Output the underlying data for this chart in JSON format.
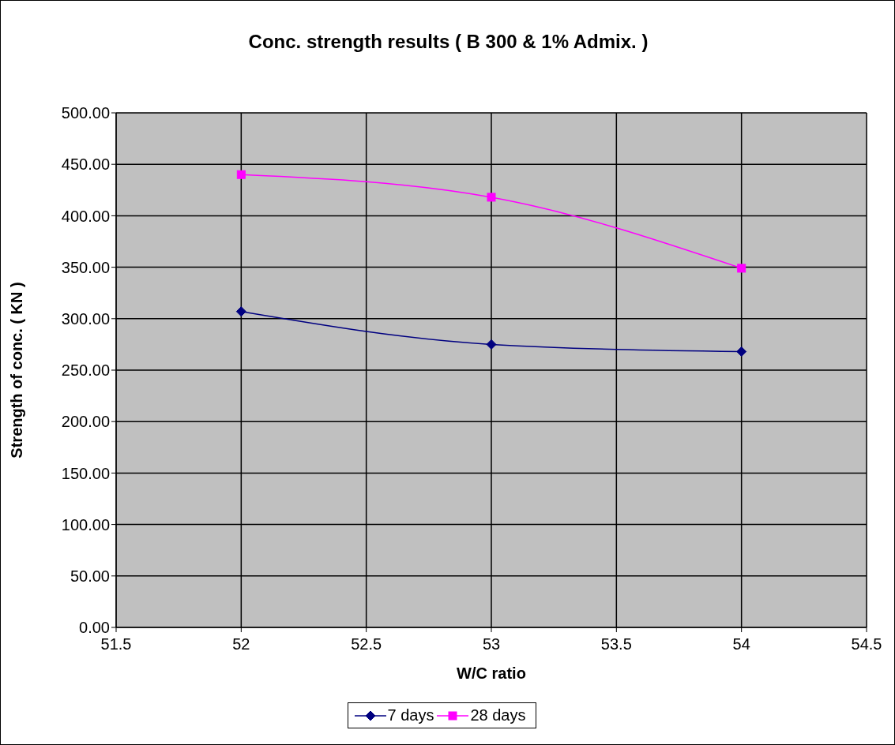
{
  "chart_data": {
    "type": "line",
    "title": "Conc. strength results ( B 300 & 1% Admix. )",
    "xlabel": "W/C ratio",
    "ylabel": "Strength of conc. ( KN )",
    "x": [
      52,
      53,
      54
    ],
    "series": [
      {
        "name": "7 days",
        "color": "#000080",
        "values": [
          307,
          275,
          268
        ],
        "marker": "diamond"
      },
      {
        "name": "28 days",
        "color": "#ff00ff",
        "values": [
          440,
          418,
          349
        ],
        "marker": "square"
      }
    ],
    "xlim": [
      51.5,
      54.5
    ],
    "xticks": [
      51.5,
      52,
      52.5,
      53,
      53.5,
      54,
      54.5
    ],
    "ylim": [
      0,
      500
    ],
    "yticks": [
      {
        "value": 0,
        "label": "0.00"
      },
      {
        "value": 50,
        "label": "50.00"
      },
      {
        "value": 100,
        "label": "100.00"
      },
      {
        "value": 150,
        "label": "150.00"
      },
      {
        "value": 200,
        "label": "200.00"
      },
      {
        "value": 250,
        "label": "250.00"
      },
      {
        "value": 300,
        "label": "300.00"
      },
      {
        "value": 350,
        "label": "350.00"
      },
      {
        "value": 400,
        "label": "400.00"
      },
      {
        "value": 450,
        "label": "450.00"
      },
      {
        "value": 500,
        "label": "500.00"
      }
    ],
    "grid": true,
    "legend": "bottom"
  }
}
